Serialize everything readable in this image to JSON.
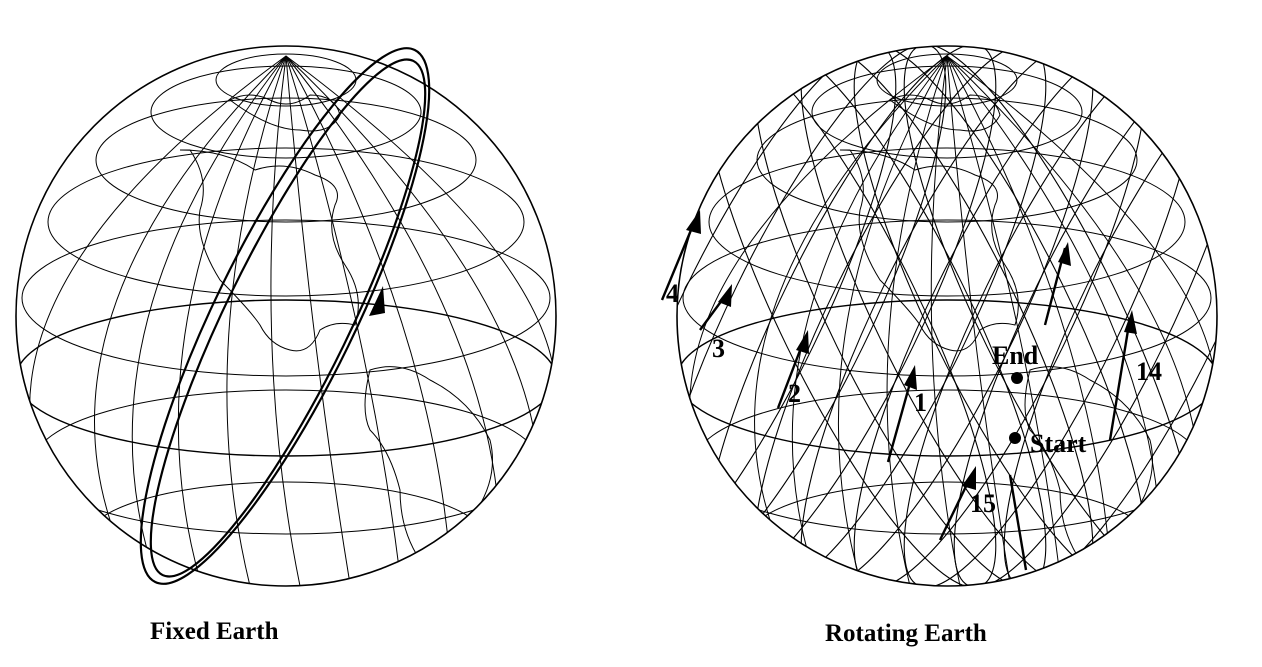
{
  "panels": [
    {
      "caption": "Fixed Earth"
    },
    {
      "caption": "Rotating Earth"
    }
  ],
  "orbit_labels": [
    "1",
    "2",
    "3",
    "4",
    "14",
    "15"
  ],
  "markers": {
    "start": "Start",
    "end": "End"
  },
  "colors": {
    "ink": "#000000",
    "background": "#ffffff"
  }
}
